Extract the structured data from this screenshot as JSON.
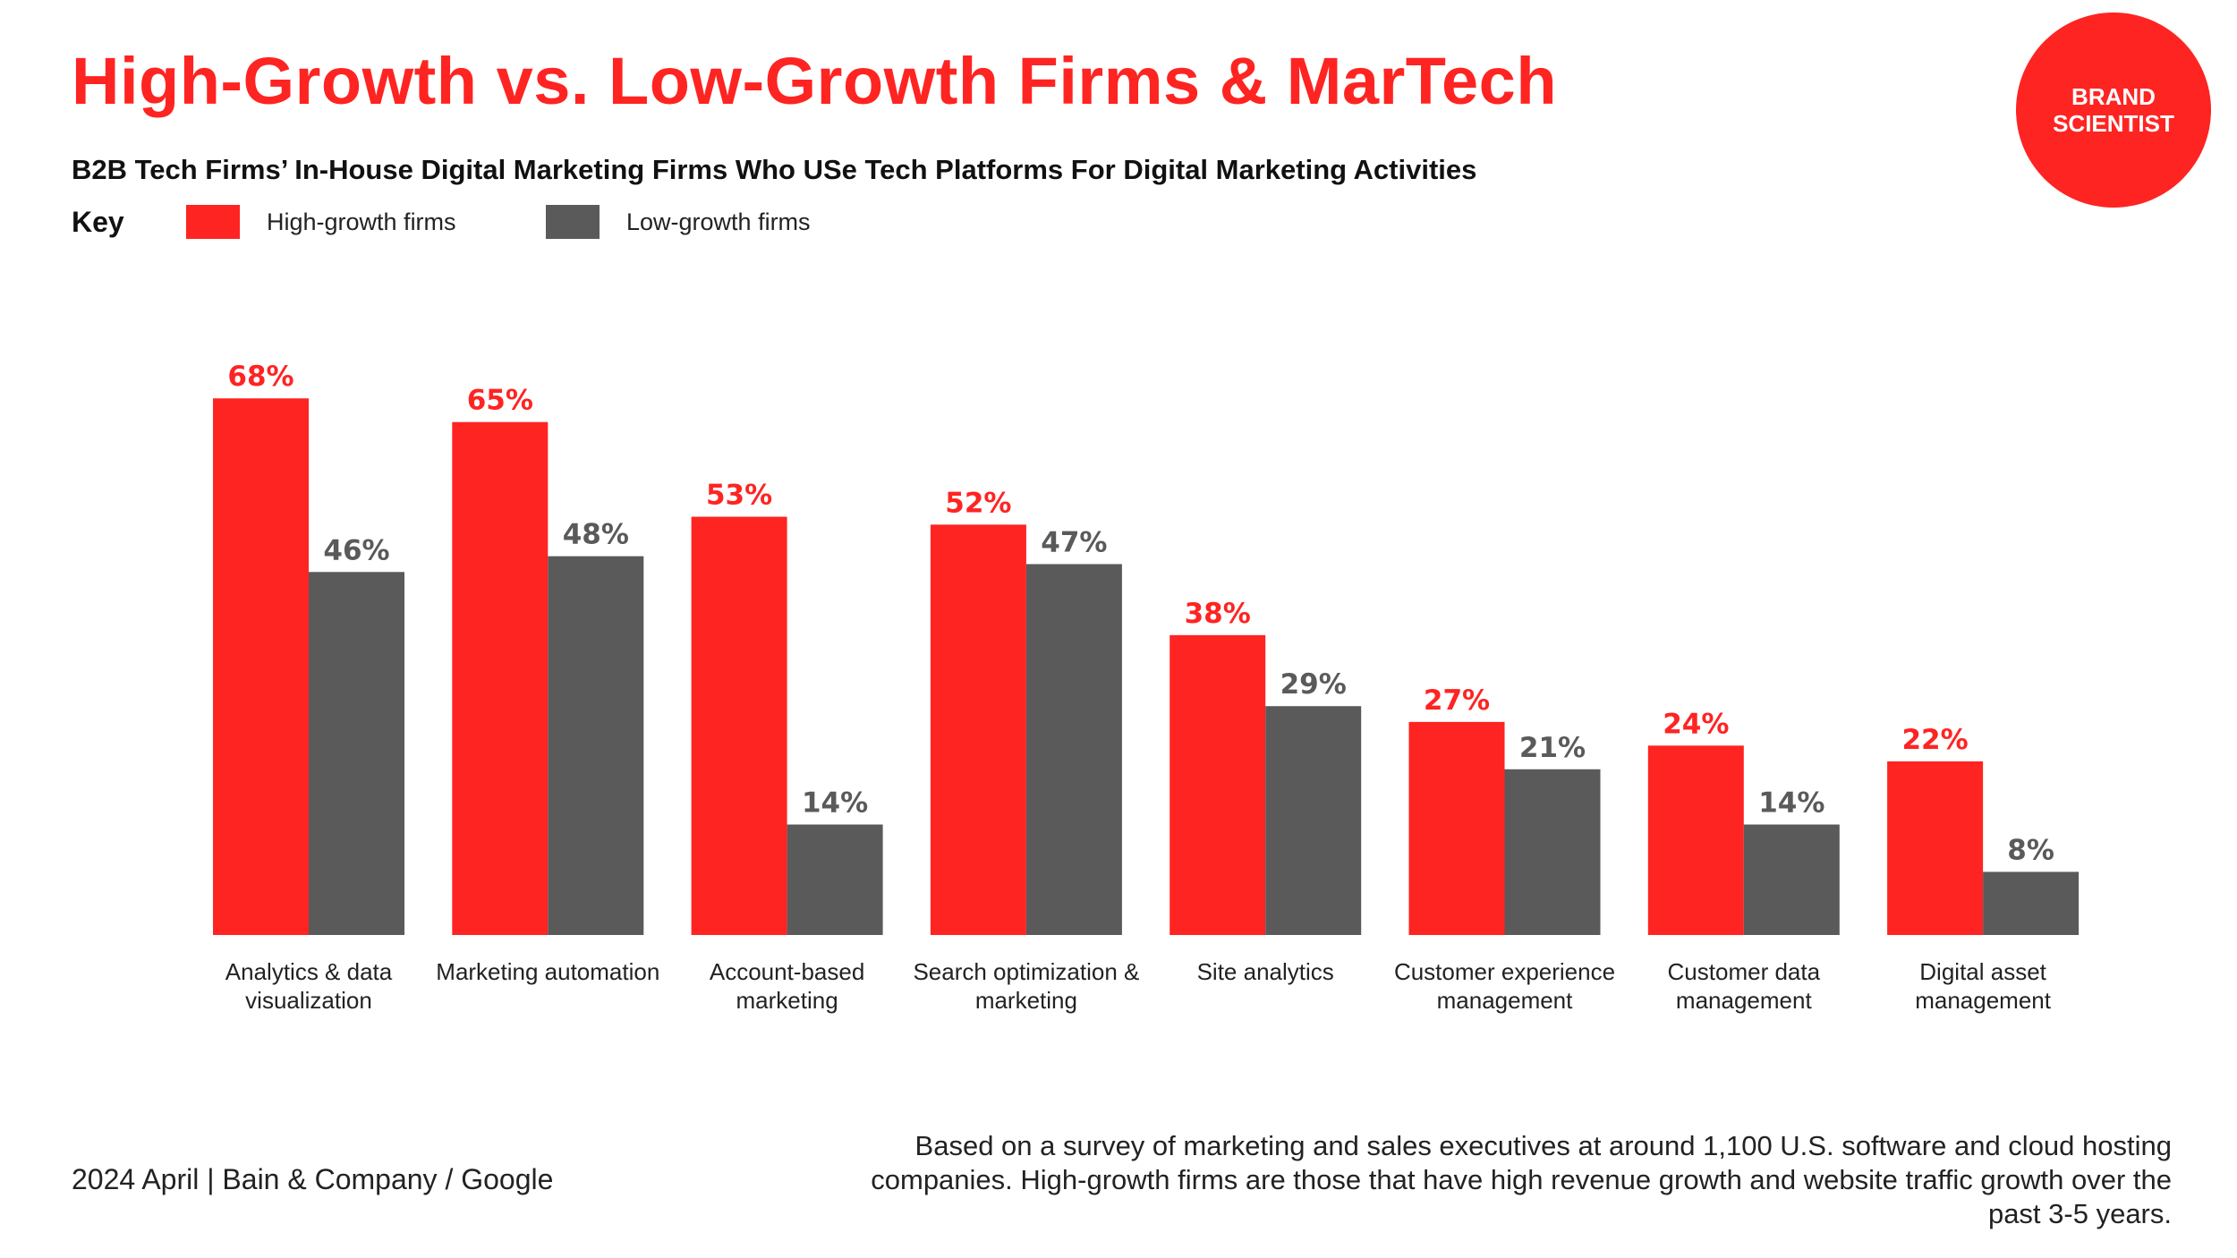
{
  "title": "High-Growth vs. Low-Growth Firms & MarTech",
  "subtitle": "B2B Tech Firms’ In-House Digital Marketing Firms Who USe Tech Platforms For Digital Marketing Activities",
  "legend": {
    "key_label": "Key",
    "items": [
      {
        "label": "High-growth firms",
        "color": "#fe2422"
      },
      {
        "label": "Low-growth firms",
        "color": "#5a5a5a"
      }
    ]
  },
  "logo": {
    "line1": "BRAND",
    "line2": "SCIENTIST",
    "color": "#fe2422"
  },
  "chart_data": {
    "type": "bar",
    "categories": [
      "Analytics & data visualization",
      "Marketing automation",
      "Account-based marketing",
      "Search optimization & marketing",
      "Site analytics",
      "Customer experience management",
      "Customer data management",
      "Digital asset management"
    ],
    "series": [
      {
        "name": "High-growth firms",
        "color": "#fe2422",
        "values": [
          68,
          65,
          53,
          52,
          38,
          27,
          24,
          22
        ]
      },
      {
        "name": "Low-growth firms",
        "color": "#5a5a5a",
        "values": [
          46,
          48,
          14,
          47,
          29,
          21,
          14,
          8
        ]
      }
    ],
    "value_suffix": "%",
    "ylim": [
      0,
      70
    ],
    "grid": false,
    "legend_position": "top-left"
  },
  "footer": {
    "source": "2024 April  |  Bain & Company / Google",
    "note": "Based on a survey of marketing and sales executives at around 1,100 U.S. software and cloud hosting companies. High-growth firms are those that have high revenue growth and website traffic growth over the past 3-5 years."
  }
}
